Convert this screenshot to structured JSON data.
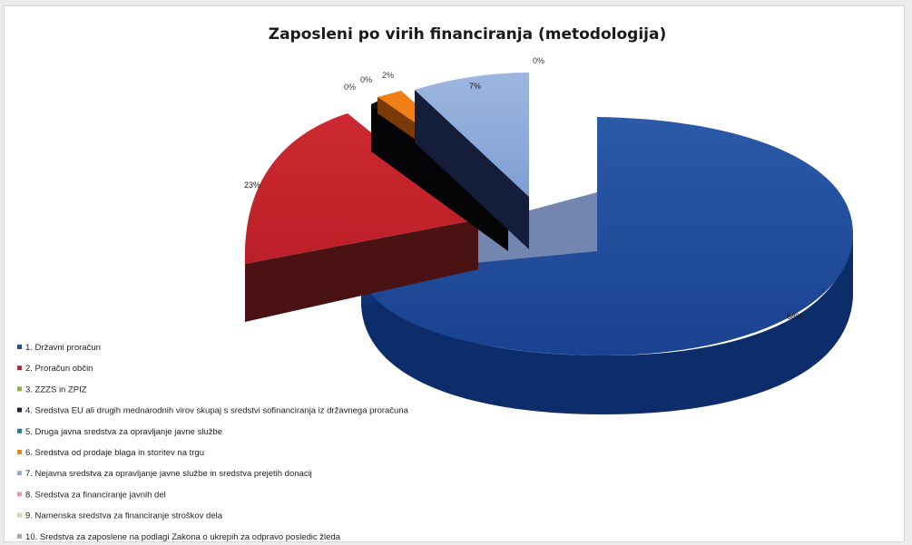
{
  "chart_data": {
    "type": "pie",
    "variant": "3d-exploded",
    "title": "Zaposleni po virih financiranja (metodologija)",
    "legend_position": "bottom-left",
    "series": [
      {
        "name": "1. Državni proračun",
        "value_label": "68%",
        "value": 68,
        "color": "#1f4e9a"
      },
      {
        "name": "2. Proračun občin",
        "value_label": "23%",
        "value": 23,
        "color": "#c8232b"
      },
      {
        "name": "3. ZZZS in ZPIZ",
        "value_label": "0%",
        "value": 0,
        "color": "#8ab43a"
      },
      {
        "name": "4. Sredstva EU ali drugih mednarodnih virov skupaj s sredstvi sofinanciranja iz državnega proračuna",
        "value_label": "0%",
        "value": 0,
        "color": "#2e1a4a"
      },
      {
        "name": "5. Druga javna sredstva za opravljanje javne službe",
        "value_label": "0%",
        "value": 0,
        "color": "#1f7fa8"
      },
      {
        "name": "6. Sredstva od prodaje blaga in storitev na trgu",
        "value_label": "2%",
        "value": 2,
        "color": "#f07f16"
      },
      {
        "name": "7. Nejavna sredstva za opravljanje javne službe in sredstva prejetih donacij",
        "value_label": "7%",
        "value": 7,
        "color": "#8eacdb"
      },
      {
        "name": "8. Sredstva za financiranje javnih del",
        "value_label": "",
        "value": 0,
        "color": "#e89a9e"
      },
      {
        "name": "9. Namenska sredstva za financiranje stroškov dela",
        "value_label": "",
        "value": 0,
        "color": "#c6dfa3"
      },
      {
        "name": "10. Sredstva za zaposlene na podlagi Zakona o ukrepih za odpravo posledic žleda",
        "value_label": "0%",
        "value": 0,
        "color": "#a6a0cc"
      }
    ]
  }
}
